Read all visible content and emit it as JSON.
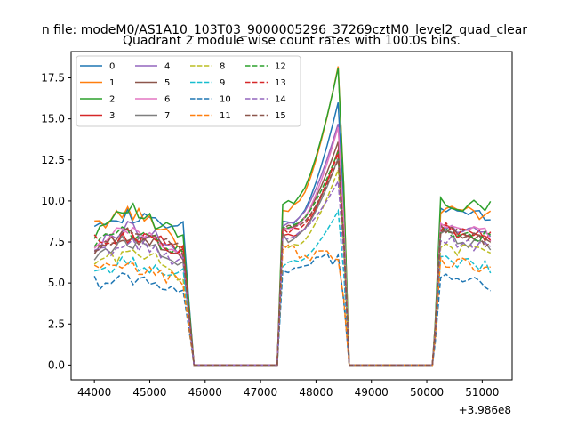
{
  "figure": {
    "suptitle": "n file: modeM0/AS1A10_103T03_9000005296_37269cztM0_level2_quad_clear",
    "title": "Quadrant 2 module wise count rates with 100.0s bins."
  },
  "chart_data": {
    "type": "line",
    "title": "Quadrant 2 module wise count rates with 100.0s bins.",
    "xlabel": "",
    "ylabel": "",
    "x_offset_label": "+3.986e8",
    "xlim": [
      43580,
      51540
    ],
    "ylim": [
      -0.9,
      19.1
    ],
    "xticks": [
      44000,
      45000,
      46000,
      47000,
      48000,
      49000,
      50000,
      51000
    ],
    "yticks": [
      0.0,
      2.5,
      5.0,
      7.5,
      10.0,
      12.5,
      15.0,
      17.5
    ],
    "ytick_labels": [
      "0.0",
      "2.5",
      "5.0",
      "7.5",
      "10.0",
      "12.5",
      "15.0",
      "17.5"
    ],
    "legend_position": "upper-left",
    "grid": false,
    "segments": [
      [
        44000,
        45600
      ],
      [
        47300,
        48400
      ],
      [
        50100,
        51200
      ]
    ],
    "series": [
      {
        "name": "0",
        "color": "#1f77b4",
        "dash": "solid",
        "values": [
          8.9,
          9.1,
          8.7,
          8.3,
          9.0,
          7.7,
          16.0,
          9.3,
          9.0
        ]
      },
      {
        "name": "1",
        "color": "#ff7f0e",
        "dash": "solid",
        "values": [
          8.4,
          9.4,
          8.7,
          7.3,
          10.0,
          7.5,
          18.2,
          9.5,
          9.1
        ]
      },
      {
        "name": "2",
        "color": "#2ca02c",
        "dash": "solid",
        "values": [
          8.1,
          9.8,
          8.5,
          7.9,
          10.3,
          7.9,
          18.1,
          9.8,
          9.7
        ]
      },
      {
        "name": "3",
        "color": "#d62728",
        "dash": "solid",
        "values": [
          7.2,
          7.9,
          7.5,
          7.0,
          8.0,
          7.1,
          13.1,
          8.3,
          7.7
        ]
      },
      {
        "name": "4",
        "color": "#9467bd",
        "dash": "solid",
        "values": [
          7.0,
          8.5,
          7.9,
          6.6,
          9.0,
          7.3,
          14.7,
          8.5,
          7.9
        ]
      },
      {
        "name": "5",
        "color": "#8c564b",
        "dash": "solid",
        "values": [
          6.8,
          8.0,
          7.4,
          6.4,
          8.7,
          7.0,
          13.6,
          8.2,
          7.6
        ]
      },
      {
        "name": "6",
        "color": "#e377c2",
        "dash": "solid",
        "values": [
          7.0,
          8.3,
          7.7,
          6.5,
          8.6,
          7.1,
          14.5,
          8.7,
          7.8
        ]
      },
      {
        "name": "7",
        "color": "#7f7f7f",
        "dash": "solid",
        "values": [
          6.7,
          7.6,
          7.2,
          6.3,
          8.0,
          6.8,
          12.6,
          7.9,
          7.2
        ]
      },
      {
        "name": "8",
        "color": "#bcbd22",
        "dash": "dashed",
        "values": [
          6.3,
          6.8,
          6.4,
          5.4,
          7.3,
          6.3,
          11.9,
          7.3,
          6.6
        ]
      },
      {
        "name": "9",
        "color": "#17becf",
        "dash": "dashed",
        "values": [
          5.7,
          6.2,
          6.0,
          5.5,
          6.3,
          5.8,
          9.4,
          6.4,
          5.9
        ]
      },
      {
        "name": "10",
        "color": "#1f77b4",
        "dash": "dashed",
        "values": [
          5.0,
          5.3,
          5.0,
          4.7,
          5.8,
          5.0,
          6.5,
          5.3,
          4.9
        ]
      },
      {
        "name": "11",
        "color": "#ff7f0e",
        "dash": "dashed",
        "values": [
          5.8,
          5.9,
          5.6,
          5.1,
          6.9,
          5.6,
          6.7,
          6.4,
          5.8
        ]
      },
      {
        "name": "12",
        "color": "#2ca02c",
        "dash": "dashed",
        "values": [
          7.5,
          8.1,
          7.6,
          7.0,
          8.7,
          7.4,
          13.0,
          8.3,
          7.7
        ]
      },
      {
        "name": "13",
        "color": "#d62728",
        "dash": "dashed",
        "values": [
          7.5,
          8.0,
          7.5,
          6.9,
          8.3,
          7.2,
          12.9,
          8.4,
          7.6
        ]
      },
      {
        "name": "14",
        "color": "#9467bd",
        "dash": "dashed",
        "values": [
          6.7,
          7.4,
          7.0,
          6.2,
          8.1,
          6.8,
          11.2,
          7.7,
          7.1
        ]
      },
      {
        "name": "15",
        "color": "#8c564b",
        "dash": "dashed",
        "values": [
          7.0,
          8.1,
          7.5,
          6.9,
          8.5,
          7.1,
          12.5,
          8.1,
          7.5
        ]
      }
    ]
  }
}
